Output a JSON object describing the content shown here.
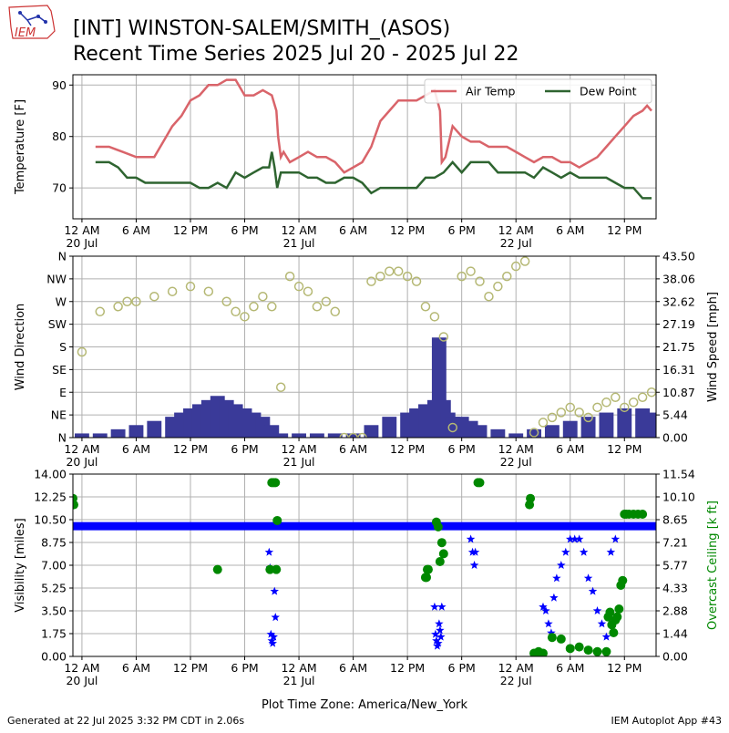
{
  "header": {
    "title_line1": "[INT] WINSTON-SALEM/SMITH_(ASOS)",
    "title_line2": "Recent Time Series 2025 Jul 20 - 2025 Jul 22",
    "logo_text": "IEM"
  },
  "footer": {
    "generated": "Generated at 22 Jul 2025 3:32 PM CDT in 2.06s",
    "app": "IEM Autoplot App #43",
    "timezone_label": "Plot Time Zone: America/New_York"
  },
  "colors": {
    "air_temp": "#d9646a",
    "dew_point": "#2e6430",
    "wind_speed": "#3a3a99",
    "wind_dir": "#b5b874",
    "visibility": "#0000ff",
    "ceiling": "#008800",
    "grid": "#b0b0b0"
  },
  "x_axis": {
    "tick_hours": [
      0,
      6,
      12,
      18,
      24,
      30,
      36,
      42,
      48,
      54,
      60
    ],
    "tick_labels": [
      "12 AM",
      "6 AM",
      "12 PM",
      "6 PM",
      "12 AM",
      "6 AM",
      "12 PM",
      "6 PM",
      "12 AM",
      "6 AM",
      "12 PM"
    ],
    "date_labels": [
      {
        "hour": 0,
        "text": "20 Jul"
      },
      {
        "hour": 24,
        "text": "21 Jul"
      },
      {
        "hour": 48,
        "text": "22 Jul"
      }
    ],
    "range_hours": [
      -1,
      63.5
    ]
  },
  "chart_data": [
    {
      "type": "line",
      "ylabel": "Temperature [F]",
      "ylim": [
        64,
        92
      ],
      "yticks": [
        70,
        80,
        90
      ],
      "legend_position": "top-right",
      "grid": true,
      "series": [
        {
          "name": "Air Temp",
          "x": [
            1.5,
            3,
            4.5,
            6,
            8,
            9,
            10,
            11,
            12,
            13,
            14,
            15,
            16,
            17,
            18,
            19,
            20,
            21,
            21.5,
            21.7,
            22,
            22.3,
            23,
            24,
            25,
            26,
            27,
            28,
            29,
            30,
            31,
            32,
            33,
            34,
            35,
            36,
            37,
            38,
            39,
            39.6,
            39.8,
            40.2,
            41,
            42,
            43,
            44,
            45,
            46,
            47,
            48,
            49,
            50,
            51,
            52,
            53,
            54,
            55,
            56,
            57,
            58,
            59,
            60,
            61,
            62,
            62.5,
            63
          ],
          "values": [
            78,
            78,
            77,
            76,
            76,
            79,
            82,
            84,
            87,
            88,
            90,
            90,
            91,
            91,
            88,
            88,
            89,
            88,
            85,
            80,
            76,
            77,
            75,
            76,
            77,
            76,
            76,
            75,
            73,
            74,
            75,
            78,
            83,
            85,
            87,
            87,
            87,
            88,
            89,
            85,
            75,
            76,
            82,
            80,
            79,
            79,
            78,
            78,
            78,
            77,
            76,
            75,
            76,
            76,
            75,
            75,
            74,
            75,
            76,
            78,
            80,
            82,
            84,
            85,
            86,
            85
          ]
        },
        {
          "name": "Dew Point",
          "x": [
            1.5,
            3,
            4,
            5,
            6,
            7,
            8,
            9,
            10,
            11,
            12,
            13,
            14,
            15,
            16,
            17,
            18,
            19,
            20,
            20.7,
            21,
            21.3,
            21.6,
            22,
            23,
            24,
            25,
            26,
            27,
            28,
            29,
            30,
            31,
            32,
            33,
            34,
            35,
            36,
            37,
            38,
            39,
            40,
            41,
            42,
            43,
            44,
            45,
            46,
            47,
            48,
            49,
            50,
            51,
            52,
            53,
            54,
            55,
            56,
            57,
            58,
            59,
            60,
            61,
            62,
            63
          ],
          "values": [
            75,
            75,
            74,
            72,
            72,
            71,
            71,
            71,
            71,
            71,
            71,
            70,
            70,
            71,
            70,
            73,
            72,
            73,
            74,
            74,
            77,
            74,
            70,
            73,
            73,
            73,
            72,
            72,
            71,
            71,
            72,
            72,
            71,
            69,
            70,
            70,
            70,
            70,
            70,
            72,
            72,
            73,
            75,
            73,
            75,
            75,
            75,
            73,
            73,
            73,
            73,
            72,
            74,
            73,
            72,
            73,
            72,
            72,
            72,
            72,
            71,
            70,
            70,
            68,
            68
          ]
        }
      ]
    },
    {
      "type": "bar",
      "ylabel": "Wind Direction",
      "y2label": "Wind Speed [mph]",
      "ylim": [
        0,
        360
      ],
      "y_tick_labels": [
        "N",
        "NE",
        "E",
        "SE",
        "S",
        "SW",
        "W",
        "NW",
        "N"
      ],
      "y2lim": [
        0,
        43.5
      ],
      "y2_tick_labels": [
        "0.00",
        "5.44",
        "10.87",
        "16.31",
        "21.75",
        "27.19",
        "32.62",
        "38.06",
        "43.50"
      ],
      "grid": true,
      "wind_speed_series": {
        "name": "Wind Speed",
        "x": [
          0,
          2,
          4,
          6,
          8,
          10,
          11,
          12,
          13,
          14,
          15,
          16,
          17,
          18,
          19,
          20,
          21,
          22,
          24,
          26,
          28,
          30,
          32,
          34,
          36,
          37,
          38,
          39,
          39.5,
          40,
          40.5,
          41,
          42,
          43,
          44,
          46,
          48,
          50,
          52,
          54,
          56,
          58,
          60,
          62,
          63
        ],
        "values": [
          1,
          1,
          2,
          3,
          4,
          5,
          6,
          7,
          8,
          9,
          10,
          9,
          8,
          7,
          6,
          5,
          3,
          1,
          1,
          1,
          1,
          1,
          3,
          5,
          6,
          7,
          8,
          9,
          24,
          9,
          6,
          5,
          5,
          4,
          3,
          2,
          1,
          2,
          3,
          4,
          5,
          6,
          7,
          7,
          6
        ]
      },
      "wind_dir_series": {
        "name": "Wind Direction",
        "x": [
          0,
          2,
          4,
          5,
          6,
          8,
          10,
          12,
          14,
          16,
          17,
          18,
          19,
          20,
          21,
          22,
          23,
          24,
          25,
          26,
          27,
          28,
          29,
          30,
          31,
          32,
          33,
          34,
          35,
          36,
          37,
          38,
          39,
          40,
          41,
          42,
          43,
          44,
          45,
          46,
          47,
          48,
          49,
          50,
          51,
          52,
          53,
          54,
          55,
          56,
          57,
          58,
          59,
          60,
          61,
          62,
          63
        ],
        "values": [
          170,
          250,
          260,
          270,
          270,
          280,
          290,
          300,
          290,
          270,
          250,
          240,
          260,
          280,
          260,
          100,
          320,
          300,
          290,
          260,
          270,
          250,
          0,
          0,
          0,
          310,
          320,
          330,
          330,
          320,
          310,
          260,
          240,
          200,
          20,
          320,
          330,
          310,
          280,
          300,
          320,
          340,
          350,
          10,
          30,
          40,
          50,
          60,
          50,
          40,
          60,
          70,
          80,
          60,
          70,
          80,
          90
        ]
      }
    },
    {
      "type": "scatter",
      "ylabel": "Visibility [miles]",
      "y2label": "Overcast Ceiling [k ft]",
      "ylim": [
        0,
        14
      ],
      "y_tick_labels": [
        "0.00",
        "1.75",
        "3.50",
        "5.25",
        "7.00",
        "8.75",
        "10.50",
        "12.25",
        "14.00"
      ],
      "y2lim": [
        0,
        11.54
      ],
      "y2_tick_labels": [
        "0.00",
        "1.44",
        "2.88",
        "4.33",
        "5.77",
        "7.21",
        "8.65",
        "10.10",
        "11.54"
      ],
      "grid": true,
      "visibility_series": {
        "name": "Visibility",
        "baseline": 10,
        "baseline_range": [
          -1,
          63.5
        ],
        "x": [
          20.7,
          20.8,
          20.9,
          21,
          21.1,
          21.2,
          21.3,
          21.4,
          39,
          39.1,
          39.2,
          39.3,
          39.4,
          39.5,
          39.6,
          39.7,
          39.8,
          43,
          43.2,
          43.4,
          43.5,
          51,
          51.3,
          51.6,
          51.9,
          52.2,
          52.5,
          53,
          53.5,
          54,
          54.5,
          55,
          55.5,
          56,
          56.5,
          57,
          57.5,
          58,
          58.5,
          59
        ],
        "values": [
          8,
          6.8,
          1.7,
          1.2,
          1.0,
          1.5,
          5.0,
          3.0,
          3.8,
          1.7,
          1.2,
          0.8,
          1.0,
          2.5,
          2.0,
          1.5,
          3.8,
          9,
          8,
          7,
          8,
          3.8,
          3.5,
          2.5,
          1.8,
          4.5,
          6,
          7,
          8,
          9,
          9,
          9,
          8,
          6,
          5,
          3.5,
          2.5,
          1.5,
          8,
          9
        ]
      },
      "ceiling_series": {
        "name": "Overcast Ceiling",
        "x": [
          -1,
          -0.9,
          15,
          20.8,
          21,
          21.2,
          21.4,
          21.5,
          21.6,
          38,
          38.1,
          38.2,
          38.3,
          39.2,
          39.4,
          39.6,
          39.8,
          40,
          43.8,
          44,
          49.5,
          49.6,
          50,
          50.5,
          51,
          52,
          53,
          54,
          55,
          56,
          57,
          58,
          58.2,
          58.4,
          58.6,
          58.8,
          59,
          59.2,
          59.4,
          59.6,
          59.8,
          60,
          60.2,
          60.5,
          61,
          61.5,
          62
        ],
        "values": [
          10,
          9.6,
          5.5,
          5.5,
          11,
          11,
          11,
          5.5,
          8.6,
          5,
          5,
          5.5,
          5.5,
          8.5,
          8.2,
          6,
          7.2,
          6.5,
          11,
          11,
          9.6,
          10,
          0.2,
          0.3,
          0.2,
          1.2,
          1.1,
          0.5,
          0.6,
          0.4,
          0.3,
          0.3,
          2.5,
          2.8,
          2,
          1.5,
          2.3,
          2.5,
          3,
          4.5,
          4.8,
          9.0,
          9.0,
          9.0,
          9.0,
          9.0,
          9.0
        ]
      }
    }
  ]
}
